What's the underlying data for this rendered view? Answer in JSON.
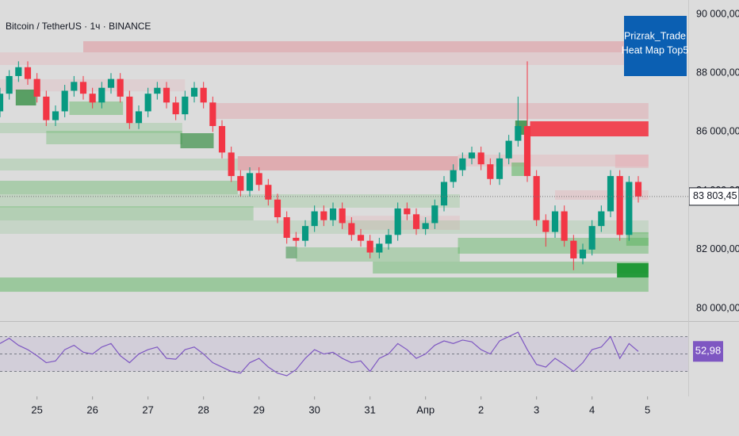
{
  "chart_data": [
    {
      "type": "candlestick",
      "title": "Bitcoin / TetherUS · 1ч · BINANCE",
      "annotation": [
        "Prizrak_Trade",
        "Heat Map Top5"
      ],
      "up_color": "#089981",
      "down_color": "#f23645",
      "x": [
        -4,
        -3,
        -2,
        -1,
        0,
        1,
        2,
        3,
        4,
        5,
        6,
        7,
        8,
        9,
        10,
        11,
        12,
        13,
        14,
        15,
        16,
        17,
        18,
        19,
        20,
        21,
        22,
        23,
        24,
        25,
        26,
        27,
        28,
        29,
        30,
        31,
        32,
        33,
        34,
        35,
        36,
        37,
        38,
        39,
        40,
        41,
        42,
        43,
        44,
        45,
        46,
        47,
        48,
        49,
        50,
        51,
        52,
        53,
        54,
        55,
        56,
        57,
        58,
        59,
        60,
        61,
        62,
        63,
        64,
        65
      ],
      "open": [
        86700,
        87300,
        87900,
        88200,
        87800,
        87200,
        86400,
        86700,
        87400,
        87700,
        87300,
        87000,
        87500,
        87800,
        87200,
        86300,
        86700,
        87300,
        87500,
        87000,
        86600,
        87200,
        87500,
        87000,
        86200,
        85300,
        84500,
        84000,
        84600,
        84200,
        83700,
        83100,
        82400,
        82300,
        82800,
        83300,
        83000,
        83400,
        82900,
        82500,
        82300,
        81900,
        82200,
        82500,
        83400,
        83200,
        82700,
        82900,
        83500,
        84300,
        84700,
        85100,
        85300,
        84900,
        84400,
        85100,
        85700,
        86200,
        84500,
        83000,
        82600,
        83300,
        82300,
        81700,
        82000,
        82800,
        83300,
        84500,
        82500,
        84300
      ],
      "high": [
        87500,
        88100,
        88400,
        88400,
        88000,
        87400,
        86900,
        87600,
        87900,
        87900,
        87500,
        87700,
        88000,
        88000,
        87400,
        86900,
        87500,
        87700,
        87700,
        87200,
        87400,
        87700,
        87700,
        87200,
        86400,
        85500,
        84700,
        84800,
        84800,
        84400,
        83900,
        83300,
        82600,
        83000,
        83500,
        83500,
        83600,
        83600,
        83100,
        82700,
        82500,
        82400,
        82700,
        83600,
        83600,
        83400,
        83100,
        83700,
        84500,
        84900,
        85300,
        85500,
        85500,
        85100,
        85300,
        85900,
        87200,
        88400,
        84700,
        83200,
        83500,
        83500,
        82500,
        82200,
        83000,
        83500,
        84700,
        84700,
        84500,
        84500
      ],
      "low": [
        86500,
        87100,
        87700,
        87600,
        87000,
        86200,
        86200,
        86500,
        87200,
        87100,
        86800,
        86800,
        87300,
        87000,
        86100,
        86100,
        86500,
        87100,
        86800,
        86400,
        86400,
        87000,
        86800,
        86000,
        85100,
        84300,
        83800,
        83800,
        84000,
        83500,
        82900,
        82200,
        82100,
        82100,
        82600,
        82800,
        82800,
        82700,
        82300,
        82100,
        81700,
        81700,
        82000,
        82300,
        83000,
        82500,
        82500,
        82700,
        83300,
        84100,
        84500,
        84900,
        84700,
        84200,
        84200,
        84900,
        85500,
        84300,
        82800,
        82100,
        82400,
        82100,
        81300,
        81500,
        81800,
        82600,
        83100,
        82300,
        82300,
        83600
      ],
      "close": [
        87300,
        87900,
        88200,
        87800,
        87200,
        86400,
        86700,
        87400,
        87700,
        87300,
        87000,
        87500,
        87800,
        87200,
        86300,
        86700,
        87300,
        87500,
        87000,
        86600,
        87200,
        87500,
        87000,
        86200,
        85300,
        84500,
        84000,
        84600,
        84200,
        83700,
        83100,
        82400,
        82300,
        82800,
        83300,
        83000,
        83400,
        82900,
        82500,
        82300,
        81900,
        82200,
        82500,
        83400,
        83200,
        82700,
        82900,
        83500,
        84300,
        84700,
        85100,
        85300,
        84900,
        84400,
        85100,
        85700,
        86200,
        84500,
        83000,
        82600,
        83300,
        82300,
        81700,
        82000,
        82800,
        83300,
        84500,
        82500,
        84300,
        83803.45
      ],
      "last_price": {
        "value": 83803.45,
        "label": "83 803,45"
      },
      "zones": [
        {
          "x0": 5,
          "x1": 66.1,
          "low": 88706,
          "high": 89084,
          "color": "rgba(226,110,120,0.35)"
        },
        {
          "x0": -4,
          "x1": 66.1,
          "low": 88275,
          "high": 88706,
          "color": "rgba(235,150,160,0.22)"
        },
        {
          "x0": -4,
          "x1": 16,
          "low": 87380,
          "high": 87790,
          "color": "rgba(235,150,160,0.18)"
        },
        {
          "x0": 19.1,
          "x1": 66.1,
          "low": 86442,
          "high": 86981,
          "color": "rgba(230,130,140,0.28)"
        },
        {
          "x0": 53.3,
          "x1": 66.1,
          "low": 85849,
          "high": 86361,
          "color": "rgba(242,54,69,0.9)"
        },
        {
          "x0": 21.7,
          "x1": 45.5,
          "low": 84690,
          "high": 85175,
          "color": "rgba(228,100,110,0.4)"
        },
        {
          "x0": 45.5,
          "x1": 66.1,
          "low": 84825,
          "high": 85229,
          "color": "rgba(235,150,160,0.25)"
        },
        {
          "x0": 62.5,
          "x1": 66.1,
          "low": 84770,
          "high": 85230,
          "color": "rgba(235,150,160,0.3)"
        },
        {
          "x0": 56,
          "x1": 66.1,
          "low": 83693,
          "high": 84016,
          "color": "rgba(235,150,160,0.25)"
        },
        {
          "x0": 32.9,
          "x1": 45.7,
          "low": 82670,
          "high": 83150,
          "color": "rgba(235,150,160,0.2)"
        },
        {
          "x0": -2.3,
          "x1": -0.1,
          "low": 86900,
          "high": 87440,
          "color": "rgba(46,139,60,0.75)"
        },
        {
          "x0": 3.5,
          "x1": 9.3,
          "low": 86577,
          "high": 87035,
          "color": "rgba(76,175,80,0.4)"
        },
        {
          "x0": -4,
          "x1": 15.7,
          "low": 85957,
          "high": 86307,
          "color": "rgba(76,175,80,0.2)"
        },
        {
          "x0": 1,
          "x1": 15.7,
          "low": 85580,
          "high": 86038,
          "color": "rgba(76,175,80,0.3)"
        },
        {
          "x0": 15.5,
          "x1": 19.1,
          "low": 85445,
          "high": 85957,
          "color": "rgba(46,139,60,0.65)"
        },
        {
          "x0": -4,
          "x1": 21.7,
          "low": 84690,
          "high": 85094,
          "color": "rgba(76,175,80,0.2)"
        },
        {
          "x0": -4,
          "x1": 21.7,
          "low": 83881,
          "high": 84340,
          "color": "rgba(76,175,80,0.35)"
        },
        {
          "x0": -4,
          "x1": 45.7,
          "low": 83423,
          "high": 83881,
          "color": "rgba(76,175,80,0.18)"
        },
        {
          "x0": -4,
          "x1": 23.4,
          "low": 82992,
          "high": 83476,
          "color": "rgba(76,175,80,0.28)"
        },
        {
          "x0": -4,
          "x1": 66.1,
          "low": 82534,
          "high": 82992,
          "color": "rgba(76,175,80,0.15)"
        },
        {
          "x0": 45.5,
          "x1": 66.1,
          "low": 81860,
          "high": 82400,
          "color": "rgba(76,175,80,0.4)"
        },
        {
          "x0": 28,
          "x1": 45.7,
          "low": 81590,
          "high": 82076,
          "color": "rgba(76,175,80,0.3)"
        },
        {
          "x0": 36.3,
          "x1": 66.1,
          "low": 81186,
          "high": 81590,
          "color": "rgba(76,175,80,0.4)"
        },
        {
          "x0": 62.7,
          "x1": 66.1,
          "low": 81051,
          "high": 81536,
          "color": "rgba(26,150,50,0.95)"
        },
        {
          "x0": -4,
          "x1": 66.1,
          "low": 80566,
          "high": 81051,
          "color": "rgba(76,175,80,0.45)"
        },
        {
          "x0": 51.7,
          "x1": 53,
          "low": 85903,
          "high": 86388,
          "color": "rgba(46,139,60,0.8)"
        },
        {
          "x0": 51.3,
          "x1": 53.3,
          "low": 84502,
          "high": 84960,
          "color": "rgba(76,175,80,0.5)"
        },
        {
          "x0": 63.7,
          "x1": 66.1,
          "low": 82130,
          "high": 82590,
          "color": "rgba(76,175,80,0.45)"
        },
        {
          "x0": 26.9,
          "x1": 28.1,
          "low": 81700,
          "high": 82100,
          "color": "rgba(46,139,60,0.5)"
        }
      ],
      "xlim": [
        -4,
        70.4
      ],
      "xticks": [
        {
          "value": 0,
          "label": "25"
        },
        {
          "value": 6,
          "label": "26"
        },
        {
          "value": 12,
          "label": "27"
        },
        {
          "value": 18,
          "label": "28"
        },
        {
          "value": 24,
          "label": "29"
        },
        {
          "value": 30,
          "label": "30"
        },
        {
          "value": 36,
          "label": "31"
        },
        {
          "value": 42,
          "label": "Апр"
        },
        {
          "value": 48,
          "label": "2"
        },
        {
          "value": 54,
          "label": "3"
        },
        {
          "value": 60,
          "label": "4"
        },
        {
          "value": 66,
          "label": "5"
        }
      ],
      "ylim": [
        79570,
        90485
      ],
      "yticks": [
        {
          "value": 80000,
          "label": "80 000,00"
        },
        {
          "value": 82000,
          "label": "82 000,00"
        },
        {
          "value": 84000,
          "label": "84 000,00"
        },
        {
          "value": 86000,
          "label": "86 000,00"
        },
        {
          "value": 88000,
          "label": "88 000,00"
        },
        {
          "value": 90000,
          "label": "90 000,00"
        }
      ]
    },
    {
      "type": "line",
      "color": "#7e57c2",
      "values": [
        62,
        68,
        60,
        55,
        48,
        40,
        42,
        55,
        60,
        52,
        50,
        58,
        62,
        48,
        40,
        50,
        55,
        58,
        45,
        44,
        55,
        58,
        50,
        40,
        35,
        30,
        28,
        40,
        45,
        35,
        28,
        25,
        32,
        45,
        55,
        50,
        52,
        45,
        40,
        42,
        30,
        45,
        50,
        62,
        55,
        45,
        50,
        60,
        65,
        62,
        66,
        64,
        55,
        50,
        65,
        70,
        75,
        55,
        38,
        35,
        45,
        38,
        30,
        40,
        55,
        58,
        70,
        45,
        62,
        52.98
      ],
      "last_label": "52,98",
      "levels": [
        30,
        50,
        70
      ],
      "ylim": [
        15,
        86
      ]
    }
  ]
}
